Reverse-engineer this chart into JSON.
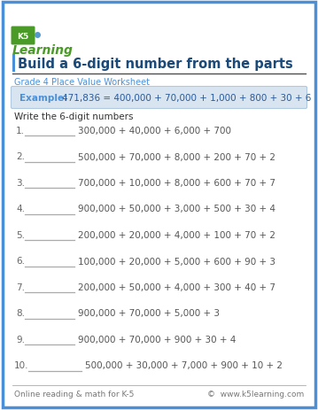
{
  "title": "Build a 6-digit number from the parts",
  "subtitle": "Grade 4 Place Value Worksheet",
  "example_label": "Example:",
  "example_text": "471,836 = 400,000 + 70,000 + 1,000 + 800 + 30 + 6",
  "instruction": "Write the 6-digit numbers",
  "problems": [
    "300,000 + 40,000 + 6,000 + 700",
    "500,000 + 70,000 + 8,000 + 200 + 70 + 2",
    "700,000 + 10,000 + 8,000 + 600 + 70 + 7",
    "900,000 + 50,000 + 3,000 + 500 + 30 + 4",
    "200,000 + 20,000 + 4,000 + 100 + 70 + 2",
    "100,000 + 20,000 + 5,000 + 600 + 90 + 3",
    "200,000 + 50,000 + 4,000 + 300 + 40 + 7",
    "900,000 + 70,000 + 5,000 + 3",
    "900,000 + 70,000 + 900 + 30 + 4",
    "500,000 + 30,000 + 7,000 + 900 + 10 + 2"
  ],
  "footer_left": "Online reading & math for K-5",
  "footer_right": "©  www.k5learning.com",
  "border_color": "#4a90d9",
  "title_color": "#1a4a7a",
  "subtitle_color": "#4a90d9",
  "example_bg": "#d8e4f0",
  "example_border": "#b0c8e0",
  "example_label_color": "#4a90d9",
  "example_text_color": "#2a5a9a",
  "instruction_color": "#333333",
  "problem_number_color": "#666666",
  "problem_text_color": "#555555",
  "line_color": "#aaaaaa",
  "footer_color": "#777777",
  "footer_line_color": "#aaaaaa",
  "bg_color": "#ffffff",
  "title_bar_color": "#4a90d9",
  "logo_green": "#4a9a28",
  "logo_green_dark": "#3a7a20"
}
